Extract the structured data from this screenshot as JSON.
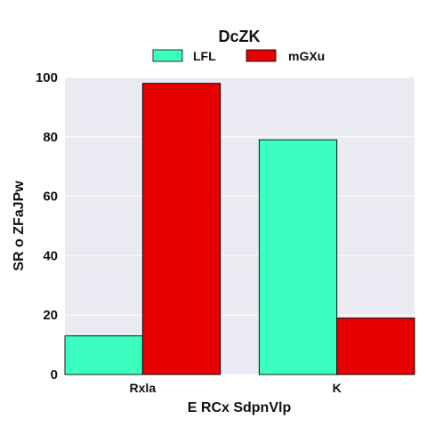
{
  "chart_data": {
    "type": "bar",
    "title": "DcZK",
    "xlabel": "E RCx SdpnVlp",
    "ylabel": "SR o ZFaJPw",
    "categories": [
      "Rxla",
      "K"
    ],
    "series": [
      {
        "name": "LFL",
        "values": [
          13,
          79
        ],
        "color": "#3bffc0"
      },
      {
        "name": "mGXu",
        "values": [
          98,
          19
        ],
        "color": "#e60000"
      }
    ],
    "ylim": [
      0,
      100
    ],
    "yticks": [
      0,
      20,
      40,
      60,
      80,
      100
    ],
    "grid": true,
    "legend": "top-center",
    "background": "#eaeaf2"
  }
}
